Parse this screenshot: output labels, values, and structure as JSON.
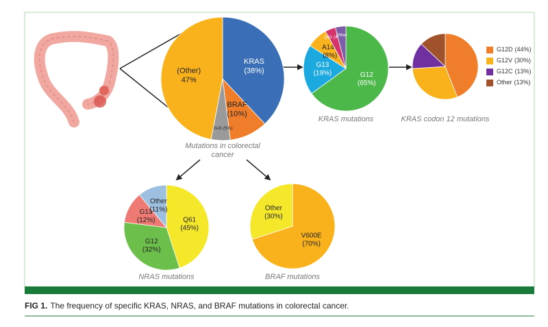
{
  "chart_data": [
    {
      "type": "pie",
      "title": "Mutations in colorectal cancer",
      "categories": [
        "KRAS",
        "BRAF",
        "NRAS",
        "(Other)"
      ],
      "values": [
        38,
        10,
        5,
        47
      ],
      "value_labels": [
        "(38%)",
        "(10%)",
        "(5%)",
        "47%"
      ],
      "colors": [
        "#3a6fb8",
        "#f07d2a",
        "#9a9a9a",
        "#f9b21b"
      ]
    },
    {
      "type": "pie",
      "title": "KRAS mutations",
      "categories": [
        "G12",
        "G13",
        "A146",
        "Q61",
        "Other"
      ],
      "values": [
        65,
        19,
        8,
        4,
        4
      ],
      "value_labels": [
        "(65%)",
        "(19%)",
        "(8%)",
        "(4%)",
        null
      ],
      "colors": [
        "#4cb84a",
        "#1ba9e0",
        "#f9b21b",
        "#d6336c",
        "#7b5ea7"
      ]
    },
    {
      "type": "pie",
      "title": "KRAS codon 12 mutations",
      "categories": [
        "G12D",
        "G12V",
        "G12C",
        "Other"
      ],
      "values": [
        44,
        30,
        13,
        13
      ],
      "value_labels": [
        "(44%)",
        "(30%)",
        "(13%)",
        "(13%)"
      ],
      "colors": [
        "#f07d2a",
        "#f9b21b",
        "#7030a0",
        "#a0522d"
      ],
      "legend": "right"
    },
    {
      "type": "pie",
      "title": "NRAS mutations",
      "categories": [
        "Q61",
        "G12",
        "G13",
        "Other"
      ],
      "values": [
        45,
        32,
        12,
        11
      ],
      "value_labels": [
        "(45%)",
        "(32%)",
        "(12%)",
        "(11%)"
      ],
      "colors": [
        "#f5e82a",
        "#6cbf4b",
        "#ef7a73",
        "#9dbfe0"
      ]
    },
    {
      "type": "pie",
      "title": "BRAF mutations",
      "categories": [
        "V600E",
        "Other"
      ],
      "values": [
        70,
        30
      ],
      "value_labels": [
        "(70%)",
        "(30%)"
      ],
      "colors": [
        "#f9b21b",
        "#f5e82a"
      ]
    }
  ],
  "figure": {
    "label": "FIG 1.",
    "caption": "The frequency of specific KRAS, NRAS, and BRAF mutations in colorectal cancer."
  }
}
